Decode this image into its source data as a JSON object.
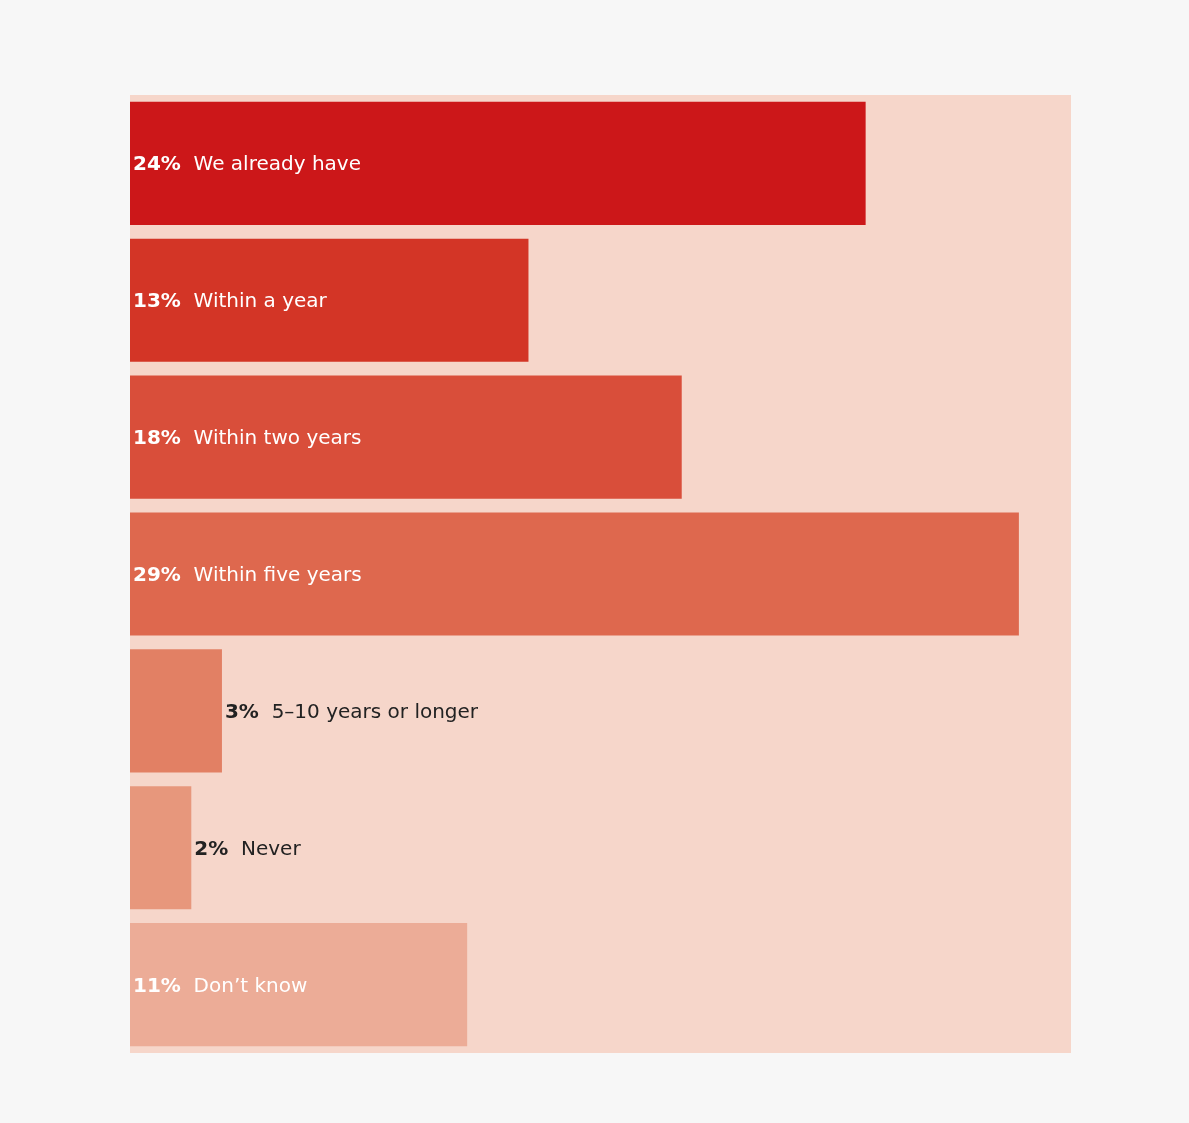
{
  "chart_data": {
    "type": "bar",
    "orientation": "horizontal",
    "categories": [
      "We already have",
      "Within a year",
      "Within two years",
      "Within five years",
      "5–10 years or longer",
      "Never",
      "Don’t know"
    ],
    "values": [
      24,
      13,
      18,
      29,
      3,
      2,
      11
    ],
    "value_labels": [
      "24%",
      "13%",
      "18%",
      "29%",
      "3%",
      "2%",
      "11%"
    ],
    "colors": [
      "#cc1719",
      "#d33526",
      "#d94e3a",
      "#de684e",
      "#e28064",
      "#e7977c",
      "#ecac97"
    ],
    "xlim": [
      0,
      30.7
    ],
    "tick_labels": false,
    "grid": false,
    "legend": false
  }
}
